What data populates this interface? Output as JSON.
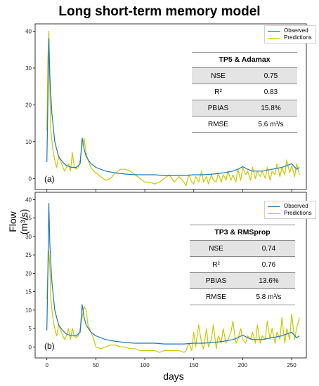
{
  "title": "Long short-term memory model",
  "ylabel": "Flow (m³/s)",
  "xlabel": "days",
  "colors": {
    "observed": "#1f77b4",
    "predictions": "#c8c800"
  },
  "chart_data": [
    {
      "type": "line",
      "panel_label": "(a)",
      "xlim": [
        -12,
        265
      ],
      "ylim": [
        -3,
        42
      ],
      "yticks": [
        0,
        10,
        20,
        30,
        40
      ],
      "legend": [
        "Observed",
        "Predictions"
      ],
      "legend_position": "top-right",
      "series": [
        {
          "name": "Observed",
          "x": [
            0,
            1,
            2,
            3,
            5,
            8,
            12,
            16,
            20,
            25,
            30,
            34,
            36,
            38,
            40,
            45,
            50,
            60,
            70,
            80,
            90,
            100,
            110,
            120,
            130,
            140,
            150,
            160,
            170,
            180,
            190,
            195,
            200,
            205,
            210,
            220,
            230,
            240,
            245,
            250,
            255,
            258
          ],
          "y": [
            4.5,
            20,
            38,
            28,
            18,
            10,
            6,
            4.5,
            3.5,
            3,
            3,
            4,
            11,
            8,
            6,
            4,
            3,
            2,
            1.5,
            1.2,
            1,
            1,
            1,
            0.8,
            0.8,
            0.8,
            1,
            1,
            1.2,
            1.5,
            2,
            2.5,
            3.2,
            2.5,
            2,
            2,
            2.5,
            3,
            3.5,
            4,
            2.5,
            3
          ]
        },
        {
          "name": "Predictions",
          "x": [
            0,
            1,
            2,
            3,
            4,
            6,
            8,
            10,
            12,
            15,
            18,
            20,
            22,
            24,
            26,
            28,
            30,
            32,
            34,
            36,
            38,
            40,
            42,
            45,
            48,
            50,
            55,
            60,
            65,
            70,
            75,
            80,
            85,
            90,
            95,
            100,
            105,
            110,
            115,
            120,
            125,
            130,
            135,
            140,
            142,
            145,
            148,
            150,
            152,
            155,
            158,
            160,
            163,
            165,
            168,
            170,
            173,
            175,
            178,
            180,
            183,
            185,
            188,
            190,
            193,
            195,
            198,
            200,
            203,
            205,
            208,
            210,
            213,
            215,
            218,
            220,
            223,
            225,
            228,
            230,
            233,
            235,
            238,
            240,
            243,
            245,
            248,
            250,
            253,
            255,
            258
          ],
          "y": [
            13,
            32,
            40,
            24,
            13,
            8,
            5,
            3,
            6,
            4,
            2,
            3,
            4,
            2,
            7,
            3,
            2.5,
            3,
            5,
            9,
            11,
            7,
            5,
            3,
            2,
            1.5,
            0.5,
            -0.5,
            0,
            1.5,
            2.5,
            2.5,
            2,
            1,
            0,
            -1,
            -1,
            -1.5,
            -1,
            0,
            1,
            -1,
            0.5,
            -1,
            -2,
            1,
            -1,
            -1.5,
            0.5,
            -1,
            2,
            -1,
            0.5,
            -1.5,
            1,
            -0.5,
            -1,
            1.5,
            -1,
            1,
            -0.5,
            2,
            -0.5,
            1,
            -1,
            2.5,
            -0.5,
            3,
            1,
            2,
            -0.5,
            3,
            0,
            2,
            0.5,
            2,
            0,
            3,
            -0.5,
            2,
            1,
            4,
            0.5,
            3,
            1,
            5,
            1.5,
            3.5,
            0.5,
            4,
            1
          ]
        }
      ],
      "table": {
        "title": "TP5 & Adamax",
        "rows": [
          {
            "metric": "NSE",
            "value": "0.75"
          },
          {
            "metric": "R²",
            "value": "0.83"
          },
          {
            "metric": "PBIAS",
            "value": "15.8%"
          },
          {
            "metric": "RMSE",
            "value": "5.6 m³/s"
          }
        ]
      }
    },
    {
      "type": "line",
      "panel_label": "(b)",
      "xlim": [
        -12,
        265
      ],
      "xticks": [
        0,
        50,
        100,
        150,
        200,
        250
      ],
      "ylim": [
        -3,
        42
      ],
      "yticks": [
        0,
        5,
        10,
        15,
        20,
        25,
        30,
        35,
        40
      ],
      "legend": [
        "Observed",
        "Predictions"
      ],
      "legend_position": "top-right",
      "series": [
        {
          "name": "Observed",
          "x": [
            0,
            1,
            2,
            3,
            5,
            8,
            12,
            16,
            20,
            25,
            30,
            34,
            36,
            38,
            40,
            45,
            50,
            60,
            70,
            80,
            90,
            100,
            110,
            120,
            130,
            140,
            150,
            160,
            170,
            180,
            190,
            195,
            200,
            205,
            210,
            220,
            230,
            240,
            245,
            250,
            255,
            258
          ],
          "y": [
            4.5,
            20,
            39,
            28,
            18,
            10,
            6,
            4.5,
            3.5,
            3,
            3,
            4,
            11.5,
            8,
            6,
            4,
            3,
            2,
            1.5,
            1.2,
            1,
            1,
            1,
            0.8,
            0.8,
            0.8,
            1,
            1,
            1.2,
            1.5,
            2,
            2.5,
            3.2,
            2.5,
            2,
            2,
            2.5,
            3,
            3.5,
            4,
            2.5,
            3
          ]
        },
        {
          "name": "Predictions",
          "x": [
            0,
            1,
            2,
            3,
            4,
            6,
            8,
            10,
            12,
            15,
            18,
            20,
            22,
            24,
            26,
            28,
            30,
            32,
            34,
            36,
            38,
            40,
            42,
            45,
            48,
            50,
            55,
            60,
            65,
            70,
            75,
            80,
            85,
            90,
            95,
            100,
            105,
            110,
            115,
            120,
            125,
            130,
            135,
            140,
            142,
            145,
            148,
            150,
            152,
            155,
            158,
            160,
            163,
            165,
            168,
            170,
            173,
            175,
            178,
            180,
            183,
            185,
            188,
            190,
            193,
            195,
            198,
            200,
            203,
            205,
            208,
            210,
            213,
            215,
            218,
            220,
            223,
            225,
            228,
            230,
            233,
            235,
            238,
            240,
            243,
            245,
            248,
            250,
            253,
            255,
            258
          ],
          "y": [
            13,
            20,
            26,
            22,
            13,
            8,
            5,
            3,
            6,
            4,
            2,
            3,
            5,
            2,
            5,
            3,
            2.5,
            3,
            5,
            8,
            11,
            10,
            6,
            4,
            2,
            0,
            -0.5,
            0,
            0.5,
            0.5,
            0,
            0,
            -0.5,
            -0.5,
            -1,
            -1,
            -1,
            -1,
            -1.5,
            -1,
            -1,
            -1,
            -1,
            -1.5,
            -1,
            1,
            -1,
            4,
            0,
            6,
            1,
            -0.5,
            5,
            0,
            2,
            6,
            -0.5,
            3,
            1,
            5,
            1,
            2,
            4,
            7,
            1,
            2,
            5,
            2,
            1,
            3,
            2,
            4,
            1,
            6,
            1,
            3,
            2,
            7,
            2,
            5,
            1,
            4,
            2,
            8,
            1,
            5,
            2,
            9,
            2,
            5,
            8
          ]
        }
      ],
      "table": {
        "title": "TP3 & RMSprop",
        "rows": [
          {
            "metric": "NSE",
            "value": "0.74"
          },
          {
            "metric": "R²",
            "value": "0.76"
          },
          {
            "metric": "PBIAS",
            "value": "13.6%"
          },
          {
            "metric": "RMSE",
            "value": "5.8 m³/s"
          }
        ]
      }
    }
  ]
}
